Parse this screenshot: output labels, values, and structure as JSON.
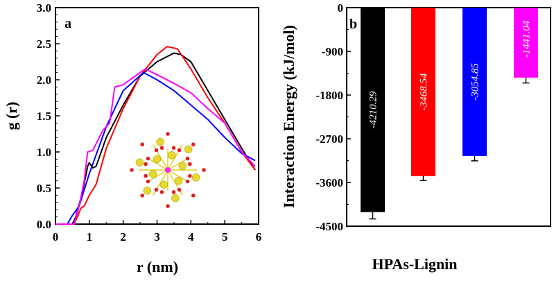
{
  "chart_data": [
    {
      "type": "line",
      "panel_label": "a",
      "xlabel": "r (nm)",
      "ylabel": "g (r)",
      "xlim": [
        0,
        6
      ],
      "ylim": [
        0,
        3.0
      ],
      "xticks": [
        "0",
        "1",
        "2",
        "3",
        "4",
        "5",
        "6"
      ],
      "yticks": [
        "0.0",
        "0.5",
        "1.0",
        "1.5",
        "2.0",
        "2.5",
        "3.0"
      ],
      "grid": false,
      "series": [
        {
          "color": "#000000",
          "x": [
            0,
            0.5,
            0.6,
            0.8,
            0.95,
            1.0,
            1.1,
            1.2,
            1.5,
            2.0,
            2.5,
            3.0,
            3.5,
            3.7,
            4.0,
            4.5,
            5.0,
            5.5,
            5.9
          ],
          "y": [
            0,
            0,
            0.1,
            0.45,
            0.8,
            0.85,
            0.78,
            0.8,
            1.2,
            1.65,
            2.05,
            2.25,
            2.37,
            2.35,
            2.25,
            1.85,
            1.45,
            1.05,
            0.75
          ]
        },
        {
          "color": "#ff0000",
          "x": [
            0,
            0.55,
            0.65,
            0.75,
            0.85,
            1.0,
            1.2,
            1.5,
            2.0,
            2.5,
            3.0,
            3.3,
            3.6,
            4.0,
            4.5,
            5.0,
            5.5,
            5.9
          ],
          "y": [
            0,
            0,
            0.1,
            0.22,
            0.25,
            0.4,
            0.55,
            1.05,
            1.6,
            2.05,
            2.35,
            2.46,
            2.43,
            2.15,
            1.75,
            1.4,
            1.0,
            0.75
          ]
        },
        {
          "color": "#0000ff",
          "x": [
            0,
            0.35,
            0.5,
            0.7,
            1.0,
            1.5,
            2.0,
            2.6,
            3.0,
            3.5,
            4.0,
            4.5,
            5.0,
            5.5,
            5.9
          ],
          "y": [
            0,
            0,
            0.12,
            0.25,
            0.7,
            1.35,
            1.85,
            2.1,
            2.0,
            1.85,
            1.65,
            1.45,
            1.2,
            0.98,
            0.88
          ]
        },
        {
          "color": "#ff00ff",
          "x": [
            0,
            0.55,
            0.7,
            0.85,
            0.95,
            1.1,
            1.4,
            1.6,
            1.75,
            2.0,
            2.2,
            2.65,
            3.0,
            3.5,
            4.0,
            4.5,
            5.0,
            5.5,
            5.9
          ],
          "y": [
            0,
            0,
            0.25,
            0.6,
            1.0,
            1.02,
            1.3,
            1.4,
            1.9,
            1.93,
            2.0,
            2.15,
            2.07,
            1.95,
            1.82,
            1.6,
            1.4,
            1.0,
            0.8
          ]
        }
      ]
    },
    {
      "type": "bar",
      "panel_label": "b",
      "xlabel": "HPAs-Lignin",
      "ylabel": "Interaction Energy (kJ/mol)",
      "ylim": [
        -4500,
        0
      ],
      "yticks": [
        "0",
        "-900",
        "-1800",
        "-2700",
        "-3600",
        "-4500"
      ],
      "grid": false,
      "values": [
        -4210.29,
        -3468.54,
        -3054.85,
        -1441.04
      ],
      "labels": [
        "-4210.29",
        "-3468.54",
        "-3054.85",
        "-1441.04"
      ],
      "errors": [
        140,
        90,
        100,
        110
      ],
      "colors": [
        "#000000",
        "#ff0000",
        "#0000ff",
        "#ff00ff"
      ]
    }
  ]
}
